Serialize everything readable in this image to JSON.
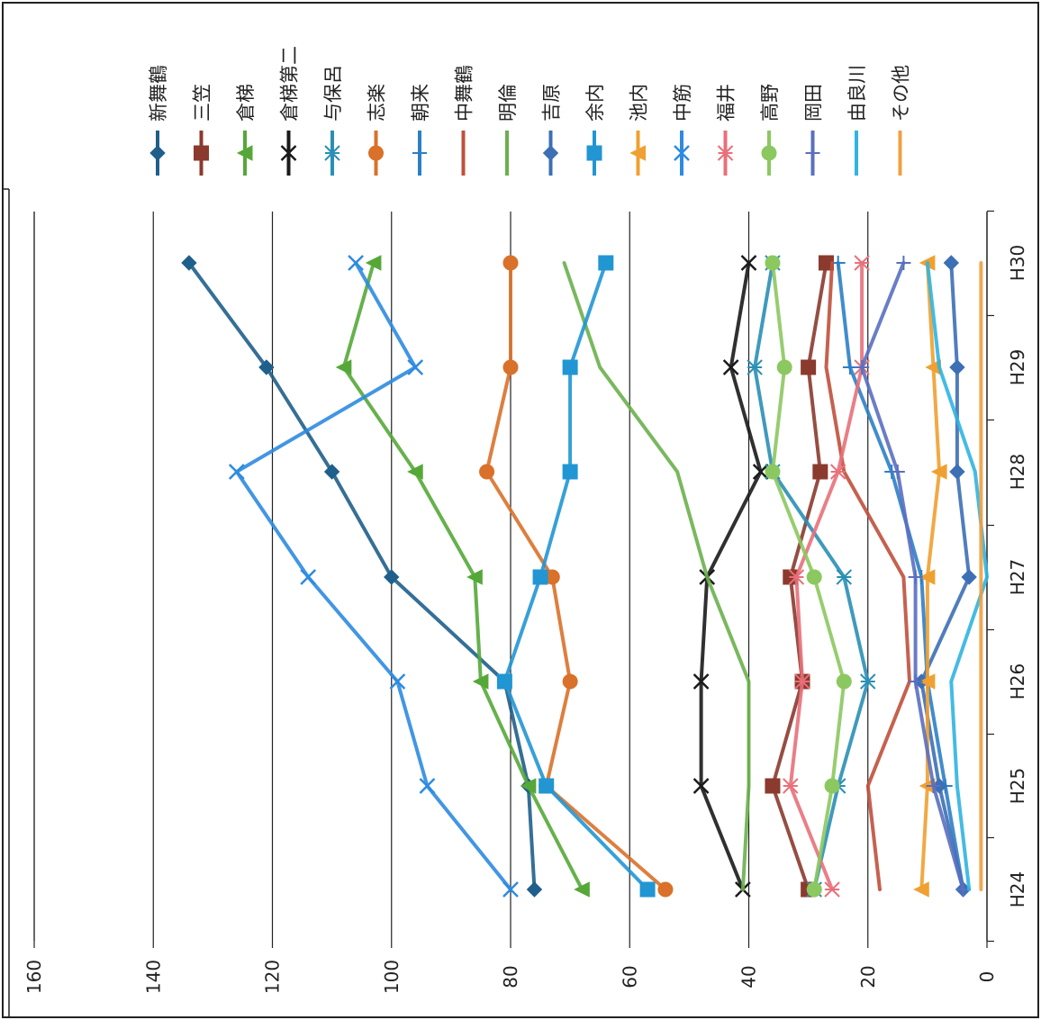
{
  "chart_data": {
    "type": "line",
    "title": "",
    "xlabel": "",
    "ylabel": "",
    "categories": [
      "H24",
      "H25",
      "H26",
      "H27",
      "H28",
      "H29",
      "H30"
    ],
    "y_ticks": [
      "0",
      "20",
      "40",
      "60",
      "80",
      "100",
      "120",
      "140",
      "160"
    ],
    "ylim": [
      0,
      160
    ],
    "grid": true,
    "legend_position": "right",
    "series": [
      {
        "name": "新舞鶴",
        "color": "#1f5f8b",
        "marker": "diamond",
        "values": [
          76,
          77,
          81,
          100,
          110,
          121,
          134
        ]
      },
      {
        "name": "三笠",
        "color": "#8b3a2e",
        "marker": "square",
        "values": [
          30,
          36,
          31,
          33,
          28,
          30,
          27
        ]
      },
      {
        "name": "倉梯",
        "color": "#55a838",
        "marker": "triangle",
        "values": [
          68,
          77,
          85,
          86,
          96,
          108,
          103
        ]
      },
      {
        "name": "倉梯第二",
        "color": "#1a1a1a",
        "marker": "x",
        "values": [
          41,
          48,
          48,
          47,
          38,
          43,
          40
        ]
      },
      {
        "name": "与保呂",
        "color": "#2a8fb5",
        "marker": "star",
        "values": [
          29,
          25,
          20,
          24,
          36,
          39,
          36
        ]
      },
      {
        "name": "志楽",
        "color": "#d9712a",
        "marker": "circle",
        "values": [
          54,
          74,
          70,
          73,
          84,
          80,
          80
        ]
      },
      {
        "name": "朝来",
        "color": "#2c7fc7",
        "marker": "plus",
        "values": [
          4,
          7,
          10,
          11,
          16,
          23,
          25
        ]
      },
      {
        "name": "中舞鶴",
        "color": "#c0503c",
        "marker": "none",
        "values": [
          18,
          20,
          13,
          14,
          24,
          27,
          26
        ]
      },
      {
        "name": "明倫",
        "color": "#6ab04c",
        "marker": "none",
        "values": [
          41,
          40,
          40,
          47,
          52,
          65,
          71
        ]
      },
      {
        "name": "吉原",
        "color": "#3d6fb5",
        "marker": "diamond",
        "values": [
          4,
          8,
          11,
          3,
          5,
          5,
          6
        ]
      },
      {
        "name": "余内",
        "color": "#2196d3",
        "marker": "square",
        "values": [
          57,
          74,
          81,
          75,
          70,
          70,
          64
        ]
      },
      {
        "name": "池内",
        "color": "#f0a030",
        "marker": "triangle",
        "values": [
          11,
          10,
          10,
          10,
          8,
          9,
          10
        ]
      },
      {
        "name": "中筋",
        "color": "#2d8be0",
        "marker": "x",
        "values": [
          80,
          94,
          99,
          114,
          126,
          96,
          106
        ]
      },
      {
        "name": "福井",
        "color": "#e8707a",
        "marker": "star",
        "values": [
          26,
          33,
          31,
          32,
          25,
          21,
          21
        ]
      },
      {
        "name": "高野",
        "color": "#8cc860",
        "marker": "circle",
        "values": [
          29,
          26,
          24,
          29,
          36,
          34,
          36
        ]
      },
      {
        "name": "岡田",
        "color": "#5a6fc0",
        "marker": "plus",
        "values": [
          4,
          9,
          12,
          12,
          15,
          21,
          14
        ]
      },
      {
        "name": "由良川",
        "color": "#30b4e0",
        "marker": "none",
        "values": [
          3,
          5,
          6,
          0,
          2,
          8,
          10
        ]
      },
      {
        "name": "その他",
        "color": "#f0a040",
        "marker": "none",
        "values": [
          1,
          1,
          1,
          1,
          1,
          1,
          1
        ]
      }
    ]
  }
}
